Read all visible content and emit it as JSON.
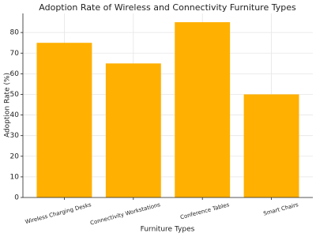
{
  "chart_data": {
    "type": "bar",
    "title": "Adoption Rate of Wireless and Connectivity Furniture Types",
    "x_label": "Furniture Types",
    "y_label": "Adoption Rate (%)",
    "categories": [
      "Wireless Charging Desks",
      "Connectivity Workstations",
      "Conference Tables",
      "Smart Chairs"
    ],
    "values": [
      75,
      65,
      85,
      50
    ],
    "color": "#ffb000",
    "ylim": [
      0,
      89.25
    ],
    "yticks": [
      0,
      10,
      20,
      30,
      40,
      50,
      60,
      70,
      80
    ],
    "grid": true
  }
}
